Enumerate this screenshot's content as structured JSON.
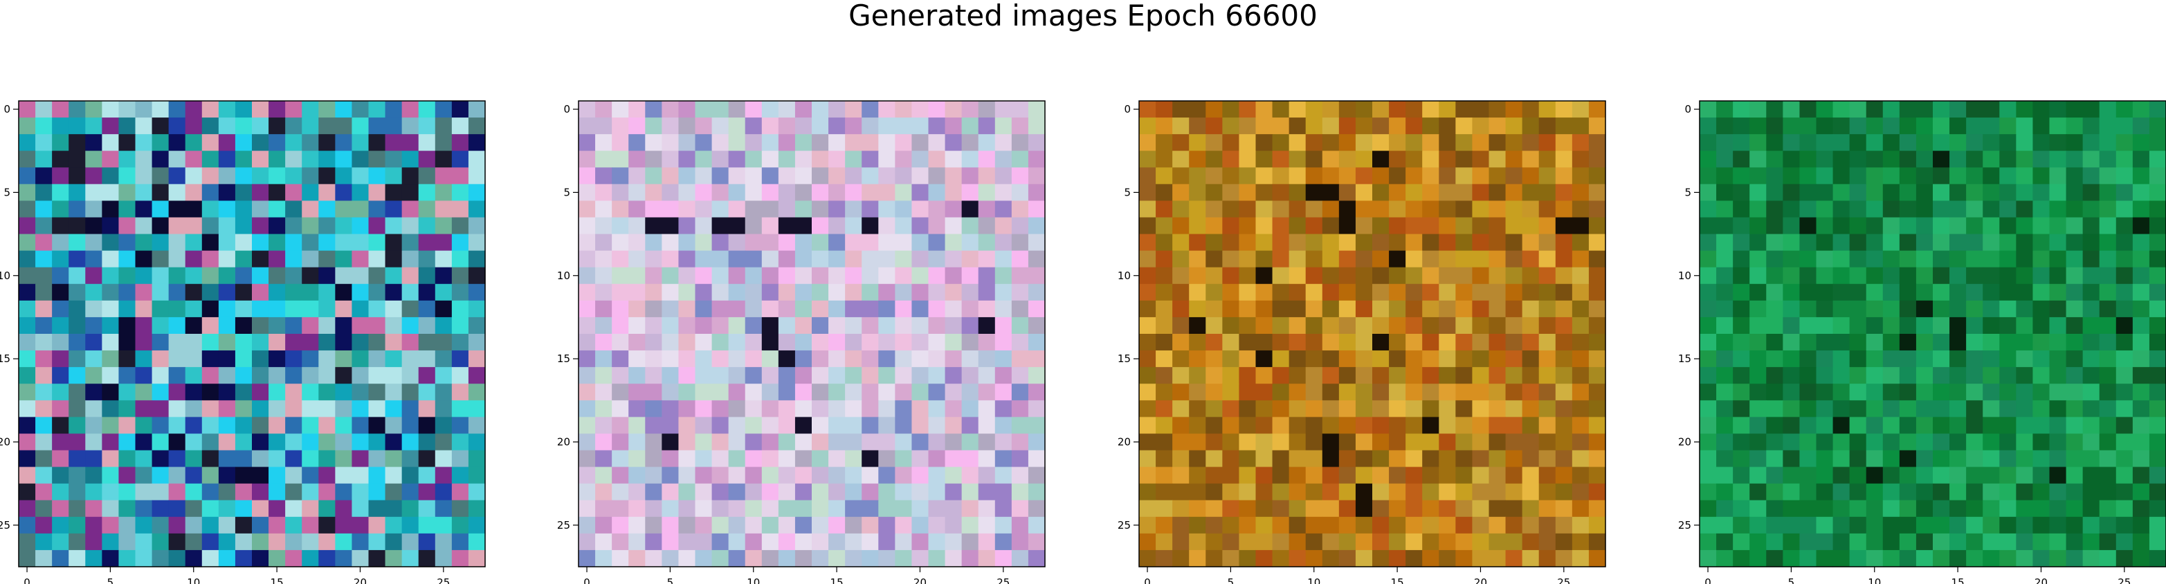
{
  "figure": {
    "title": "Generated images Epoch 66600"
  },
  "chart_data": [
    {
      "type": "heatmap",
      "rgb_image": true,
      "grid_size": [
        28,
        28
      ],
      "x_ticks": [
        0,
        5,
        10,
        15,
        20,
        25
      ],
      "y_ticks": [
        0,
        5,
        10,
        15,
        20,
        25
      ],
      "xlim": [
        -0.5,
        27.5
      ],
      "ylim": [
        27.5,
        -0.5
      ],
      "palette": [
        "#1aa39a",
        "#2ec4c8",
        "#5fd6e0",
        "#7fb8c8",
        "#9ad0d8",
        "#b4e6ea",
        "#3a8f9e",
        "#167a8c",
        "#0fa3b8",
        "#2a6fb0",
        "#1f3fa8",
        "#0a0f5a",
        "#1b1b2e",
        "#7a2a8a",
        "#c96aa6",
        "#e0a6b4",
        "#6fb59a",
        "#38e0d8",
        "#1fd0f0",
        "#4a7a7a"
      ],
      "dark_spots": [
        [
          6,
          5
        ],
        [
          6,
          9
        ],
        [
          6,
          10
        ],
        [
          7,
          4
        ],
        [
          7,
          8
        ],
        [
          8,
          11
        ],
        [
          9,
          7
        ],
        [
          11,
          2
        ],
        [
          12,
          11
        ],
        [
          13,
          6
        ],
        [
          13,
          10
        ],
        [
          13,
          13
        ],
        [
          14,
          6
        ],
        [
          17,
          5
        ],
        [
          17,
          11
        ],
        [
          19,
          21
        ],
        [
          19,
          24
        ],
        [
          20,
          9
        ],
        [
          22,
          13
        ],
        [
          22,
          14
        ],
        [
          12,
          25
        ],
        [
          11,
          19
        ]
      ]
    },
    {
      "type": "heatmap",
      "rgb_image": true,
      "grid_size": [
        28,
        28
      ],
      "x_ticks": [
        0,
        5,
        10,
        15,
        20,
        25
      ],
      "y_ticks": [
        0,
        5,
        10,
        15,
        20,
        25
      ],
      "xlim": [
        -0.5,
        27.5
      ],
      "ylim": [
        27.5,
        -0.5
      ],
      "palette": [
        "#c8b4d8",
        "#d8c0e0",
        "#e6d4ea",
        "#b4c4dc",
        "#a0d0c8",
        "#e8b8c8",
        "#c890c8",
        "#9a80c8",
        "#d0d8e8",
        "#f0c0e0",
        "#b0a8c0",
        "#c6e0d0",
        "#e8e0f0",
        "#a8c8e0",
        "#d8a8d0",
        "#bcd8e8",
        "#7a8ac8",
        "#f8b8f0"
      ],
      "dark_spots": [
        [
          7,
          4
        ],
        [
          7,
          5
        ],
        [
          7,
          8
        ],
        [
          7,
          9
        ],
        [
          7,
          12
        ],
        [
          7,
          13
        ],
        [
          7,
          17
        ],
        [
          6,
          23
        ],
        [
          13,
          11
        ],
        [
          14,
          11
        ],
        [
          15,
          12
        ],
        [
          13,
          24
        ],
        [
          21,
          17
        ],
        [
          19,
          13
        ],
        [
          20,
          5
        ]
      ]
    },
    {
      "type": "heatmap",
      "rgb_image": true,
      "grid_size": [
        28,
        28
      ],
      "x_ticks": [
        0,
        5,
        10,
        15,
        20,
        25
      ],
      "y_ticks": [
        0,
        5,
        10,
        15,
        20,
        25
      ],
      "xlim": [
        -0.5,
        27.5
      ],
      "ylim": [
        27.5,
        -0.5
      ],
      "palette": [
        "#c87a10",
        "#b86a08",
        "#d89020",
        "#a07010",
        "#c8a020",
        "#8a6a10",
        "#e0a030",
        "#b05010",
        "#c06018",
        "#986020",
        "#a88a20",
        "#d0b040",
        "#7a5010",
        "#e8b840",
        "#b88830",
        "#906010",
        "#c89828",
        "#a05810"
      ],
      "dark_spots": [
        [
          3,
          14
        ],
        [
          5,
          11
        ],
        [
          5,
          10
        ],
        [
          6,
          12
        ],
        [
          7,
          12
        ],
        [
          7,
          25
        ],
        [
          7,
          26
        ],
        [
          10,
          7
        ],
        [
          13,
          3
        ],
        [
          14,
          14
        ],
        [
          15,
          7
        ],
        [
          19,
          17
        ],
        [
          20,
          11
        ],
        [
          21,
          11
        ],
        [
          23,
          13
        ],
        [
          24,
          13
        ],
        [
          9,
          15
        ]
      ]
    },
    {
      "type": "heatmap",
      "rgb_image": true,
      "grid_size": [
        28,
        28
      ],
      "x_ticks": [
        0,
        5,
        10,
        15,
        20,
        25
      ],
      "y_ticks": [
        0,
        5,
        10,
        15,
        20,
        25
      ],
      "xlim": [
        -0.5,
        27.5
      ],
      "ylim": [
        27.5,
        -0.5
      ],
      "palette": [
        "#108a40",
        "#0a7a30",
        "#18a050",
        "#0c6a30",
        "#20b060",
        "#108048",
        "#0a9040",
        "#148c58",
        "#1c9a48",
        "#0e5a28",
        "#24b870",
        "#0a7038",
        "#18885a",
        "#2ab06a",
        "#08662a",
        "#16a060"
      ],
      "dark_spots": [
        [
          3,
          14
        ],
        [
          7,
          26
        ],
        [
          12,
          13
        ],
        [
          13,
          15
        ],
        [
          14,
          15
        ],
        [
          14,
          12
        ],
        [
          19,
          8
        ],
        [
          21,
          12
        ],
        [
          22,
          10
        ],
        [
          22,
          21
        ],
        [
          13,
          25
        ],
        [
          7,
          6
        ]
      ]
    }
  ]
}
